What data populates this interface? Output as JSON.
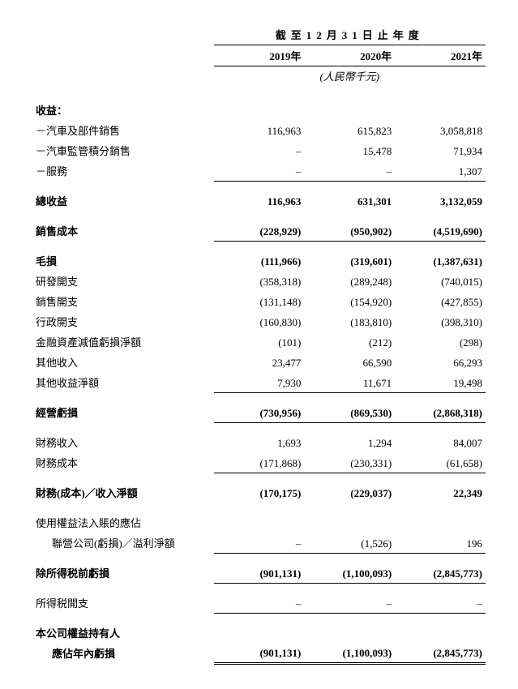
{
  "header": {
    "title": "截至12月31日止年度",
    "years": [
      "2019年",
      "2020年",
      "2021年"
    ],
    "unit": "(人民幣千元)"
  },
  "rows": [
    {
      "type": "spacer"
    },
    {
      "label": "收益：",
      "vals": [
        "",
        "",
        ""
      ],
      "bold": true
    },
    {
      "label": "－汽車及部件銷售",
      "vals": [
        "116,963",
        "615,823",
        "3,058,818"
      ]
    },
    {
      "label": "－汽車監管積分銷售",
      "vals": [
        "–",
        "15,478",
        "71,934"
      ]
    },
    {
      "label": "－服務",
      "vals": [
        "–",
        "–",
        "1,307"
      ],
      "underline": true
    },
    {
      "type": "spacer"
    },
    {
      "label": "總收益",
      "vals": [
        "116,963",
        "631,301",
        "3,132,059"
      ],
      "bold": true
    },
    {
      "type": "spacer"
    },
    {
      "label": "銷售成本",
      "vals": [
        "(228,929)",
        "(950,902)",
        "(4,519,690)"
      ],
      "bold": true,
      "underline": true
    },
    {
      "type": "spacer"
    },
    {
      "label": "毛損",
      "vals": [
        "(111,966)",
        "(319,601)",
        "(1,387,631)"
      ],
      "bold": true
    },
    {
      "label": "研發開支",
      "vals": [
        "(358,318)",
        "(289,248)",
        "(740,015)"
      ]
    },
    {
      "label": "銷售開支",
      "vals": [
        "(131,148)",
        "(154,920)",
        "(427,855)"
      ]
    },
    {
      "label": "行政開支",
      "vals": [
        "(160,830)",
        "(183,810)",
        "(398,310)"
      ]
    },
    {
      "label": "金融資產減值虧損淨額",
      "vals": [
        "(101)",
        "(212)",
        "(298)"
      ]
    },
    {
      "label": "其他收入",
      "vals": [
        "23,477",
        "66,590",
        "66,293"
      ]
    },
    {
      "label": "其他收益淨額",
      "vals": [
        "7,930",
        "11,671",
        "19,498"
      ],
      "underline": true
    },
    {
      "type": "spacer"
    },
    {
      "label": "經營虧損",
      "vals": [
        "(730,956)",
        "(869,530)",
        "(2,868,318)"
      ],
      "bold": true,
      "underline": true
    },
    {
      "type": "spacer"
    },
    {
      "label": "財務收入",
      "vals": [
        "1,693",
        "1,294",
        "84,007"
      ]
    },
    {
      "label": "財務成本",
      "vals": [
        "(171,868)",
        "(230,331)",
        "(61,658)"
      ],
      "underline": true
    },
    {
      "type": "spacer"
    },
    {
      "label": "財務(成本)／收入淨額",
      "vals": [
        "(170,175)",
        "(229,037)",
        "22,349"
      ],
      "bold": true
    },
    {
      "type": "spacer"
    },
    {
      "label": "使用權益法入賬的應佔",
      "vals": [
        "",
        "",
        ""
      ]
    },
    {
      "label": "聯營公司(虧損)／溢利淨額",
      "vals": [
        "–",
        "(1,526)",
        "196"
      ],
      "indent": true,
      "underline": true
    },
    {
      "type": "spacer"
    },
    {
      "label": "除所得税前虧損",
      "vals": [
        "(901,131)",
        "(1,100,093)",
        "(2,845,773)"
      ],
      "bold": true,
      "underline": true
    },
    {
      "type": "spacer"
    },
    {
      "label": "所得税開支",
      "vals": [
        "–",
        "–",
        "–"
      ],
      "underline": true
    },
    {
      "type": "spacer"
    },
    {
      "label": "本公司權益持有人",
      "vals": [
        "",
        "",
        ""
      ],
      "bold": true
    },
    {
      "label": "應佔年內虧損",
      "vals": [
        "(901,131)",
        "(1,100,093)",
        "(2,845,773)"
      ],
      "bold": true,
      "indent": true,
      "double": true
    }
  ]
}
